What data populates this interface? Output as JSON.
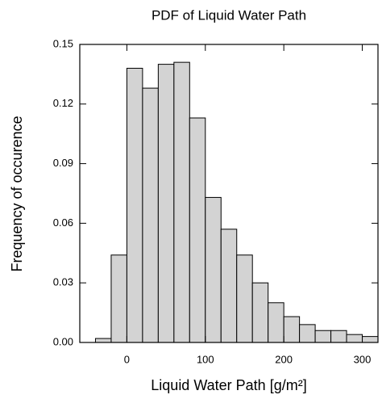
{
  "chart_data": {
    "type": "histogram",
    "title": "PDF of Liquid Water Path",
    "xlabel": "Liquid Water Path [g/m²]",
    "ylabel": "Frequency of occurence",
    "bins": [
      -40,
      -20,
      0,
      20,
      40,
      60,
      80,
      100,
      120,
      140,
      160,
      180,
      200,
      220,
      240,
      260,
      280,
      300,
      320
    ],
    "values": [
      0.002,
      0.044,
      0.138,
      0.128,
      0.14,
      0.141,
      0.113,
      0.073,
      0.057,
      0.044,
      0.03,
      0.02,
      0.013,
      0.009,
      0.006,
      0.006,
      0.004,
      0.003
    ],
    "color": "#d3d3d3",
    "xlim": [
      -60,
      320
    ],
    "ylim": [
      0,
      0.15
    ],
    "xticks": [
      0,
      100,
      200,
      300
    ],
    "yticks": [
      {
        "value": 0,
        "label": "0.00"
      },
      0.03,
      0.06,
      0.09,
      0.12,
      0.15
    ]
  }
}
